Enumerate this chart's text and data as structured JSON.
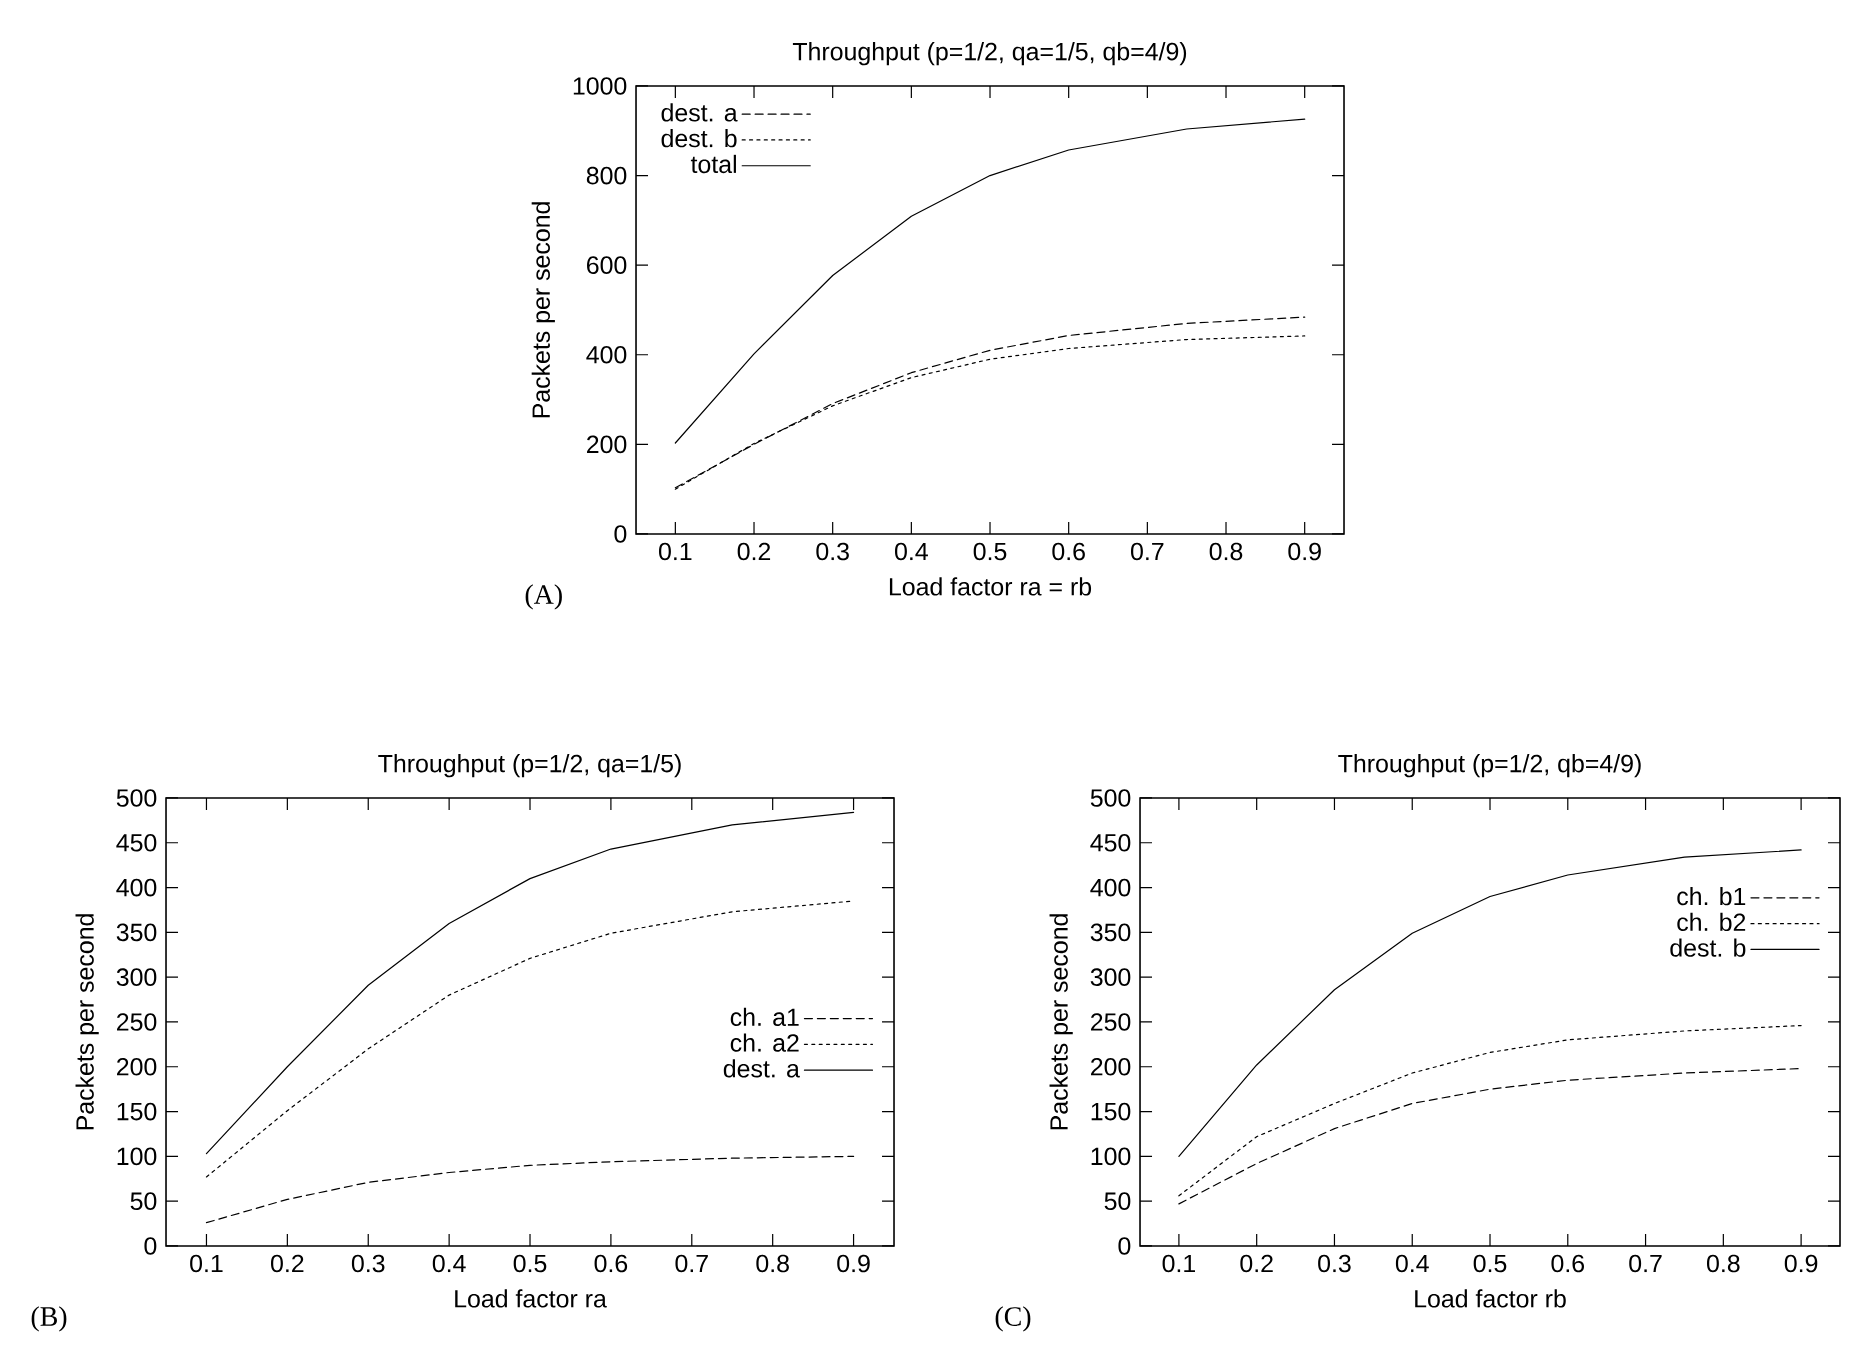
{
  "chart_data": [
    {
      "type": "line",
      "title": "Throughput (p=1/2, qa=1/5, qb=4/9)",
      "xlabel": "Load factor ra = rb",
      "ylabel": "Packets per second",
      "annotations": [
        "(A)"
      ],
      "x": [
        0.1,
        0.2,
        0.3,
        0.4,
        0.5,
        0.6,
        0.75,
        0.9
      ],
      "xlim": [
        0.05,
        0.95
      ],
      "xticks": [
        0.1,
        0.2,
        0.3,
        0.4,
        0.5,
        0.6,
        0.7,
        0.8,
        0.9
      ],
      "ylim": [
        0,
        1000
      ],
      "yticks": [
        0,
        200,
        400,
        600,
        800,
        1000
      ],
      "legend": "top left",
      "grid": false,
      "marker": "none",
      "series": [
        {
          "name": "dest. a",
          "color": "#000000",
          "line_style": "dashed",
          "values": [
            103,
            200,
            291,
            360,
            410,
            443,
            470,
            484
          ]
        },
        {
          "name": "dest. b",
          "color": "#000000",
          "line_style": "dotted",
          "values": [
            100,
            202,
            286,
            349,
            390,
            414,
            434,
            442
          ]
        },
        {
          "name": "total",
          "color": "#000000",
          "line_style": "solid",
          "values": [
            203,
            402,
            577,
            709,
            800,
            857,
            904,
            926
          ]
        }
      ]
    },
    {
      "type": "line",
      "title": "Throughput (p=1/2, qa=1/5)",
      "xlabel": "Load factor ra",
      "ylabel": "Packets per second",
      "annotations": [
        "(B)"
      ],
      "x": [
        0.1,
        0.2,
        0.3,
        0.4,
        0.5,
        0.6,
        0.75,
        0.9
      ],
      "xlim": [
        0.05,
        0.95
      ],
      "xticks": [
        0.1,
        0.2,
        0.3,
        0.4,
        0.5,
        0.6,
        0.7,
        0.8,
        0.9
      ],
      "ylim": [
        0,
        500
      ],
      "yticks": [
        0,
        50,
        100,
        150,
        200,
        250,
        300,
        350,
        400,
        450,
        500
      ],
      "legend": "right",
      "grid": false,
      "marker": "none",
      "series": [
        {
          "name": "ch. a1",
          "color": "#000000",
          "line_style": "dashed",
          "values": [
            26,
            52,
            71,
            82,
            90,
            94,
            98,
            100
          ]
        },
        {
          "name": "ch. a2",
          "color": "#000000",
          "line_style": "dotted",
          "values": [
            77,
            151,
            220,
            280,
            321,
            349,
            373,
            385
          ]
        },
        {
          "name": "dest. a",
          "color": "#000000",
          "line_style": "solid",
          "values": [
            103,
            200,
            291,
            360,
            410,
            443,
            470,
            484
          ]
        }
      ]
    },
    {
      "type": "line",
      "title": "Throughput (p=1/2, qb=4/9)",
      "xlabel": "Load factor rb",
      "ylabel": "Packets per second",
      "annotations": [
        "(C)"
      ],
      "x": [
        0.1,
        0.2,
        0.3,
        0.4,
        0.5,
        0.6,
        0.75,
        0.9
      ],
      "xlim": [
        0.05,
        0.95
      ],
      "xticks": [
        0.1,
        0.2,
        0.3,
        0.4,
        0.5,
        0.6,
        0.7,
        0.8,
        0.9
      ],
      "ylim": [
        0,
        500
      ],
      "yticks": [
        0,
        50,
        100,
        150,
        200,
        250,
        300,
        350,
        400,
        450,
        500
      ],
      "legend": "top right",
      "grid": false,
      "marker": "none",
      "series": [
        {
          "name": "ch. b1",
          "color": "#000000",
          "line_style": "dashed",
          "values": [
            47,
            92,
            131,
            159,
            175,
            185,
            193,
            198
          ]
        },
        {
          "name": "ch. b2",
          "color": "#000000",
          "line_style": "dotted",
          "values": [
            56,
            122,
            159,
            193,
            216,
            230,
            240,
            246
          ]
        },
        {
          "name": "dest. b",
          "color": "#000000",
          "line_style": "solid",
          "values": [
            100,
            202,
            286,
            349,
            390,
            414,
            434,
            442
          ]
        }
      ]
    }
  ]
}
